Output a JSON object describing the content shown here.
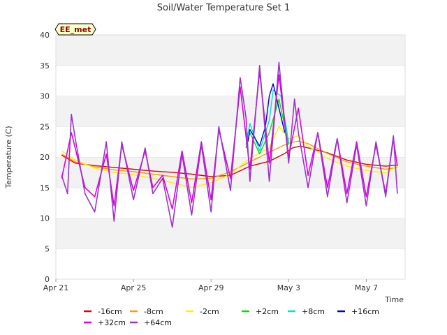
{
  "chart_data": {
    "type": "line",
    "title": "Soil/Water Temperature Set 1",
    "badge": "EE_met",
    "xlabel": "Time",
    "ylabel": "Temperature (C)",
    "ylim": [
      0,
      40
    ],
    "yticks": [
      0,
      5,
      10,
      15,
      20,
      25,
      30,
      35,
      40
    ],
    "xlim": [
      "2019-04-21",
      "2019-05-09"
    ],
    "xtick_labels": [
      "Apr 21",
      "Apr 25",
      "Apr 29",
      "May 3",
      "May 7"
    ],
    "xtick_days": [
      0,
      4,
      8,
      12,
      16
    ],
    "grid": "horizontal bands",
    "legend_position": "bottom",
    "series": [
      {
        "name": "-16cm",
        "color": "#dd0000",
        "points": [
          [
            0.3,
            20.3
          ],
          [
            1,
            19.0
          ],
          [
            2,
            18.6
          ],
          [
            3,
            18.3
          ],
          [
            4,
            18.0
          ],
          [
            5,
            17.7
          ],
          [
            6,
            17.5
          ],
          [
            7,
            17.2
          ],
          [
            8,
            16.8
          ],
          [
            9,
            17.0
          ],
          [
            10,
            18.5
          ],
          [
            11,
            19.3
          ],
          [
            11.8,
            20.6
          ],
          [
            12.2,
            21.5
          ],
          [
            12.6,
            21.8
          ],
          [
            13,
            21.5
          ],
          [
            14,
            20.7
          ],
          [
            15,
            19.5
          ],
          [
            16,
            18.8
          ],
          [
            17,
            18.5
          ],
          [
            17.6,
            18.7
          ]
        ]
      },
      {
        "name": "-8cm",
        "color": "#ff9900",
        "points": [
          [
            0.3,
            20.5
          ],
          [
            1,
            19.2
          ],
          [
            2,
            18.4
          ],
          [
            3,
            17.9
          ],
          [
            4,
            17.6
          ],
          [
            5,
            17.2
          ],
          [
            6,
            16.8
          ],
          [
            7,
            16.4
          ],
          [
            8,
            16.5
          ],
          [
            9,
            17.6
          ],
          [
            10,
            19.2
          ],
          [
            11,
            20.8
          ],
          [
            12,
            22.3
          ],
          [
            12.5,
            22.6
          ],
          [
            13,
            22.2
          ],
          [
            14,
            20.6
          ],
          [
            15,
            19.2
          ],
          [
            16,
            18.5
          ],
          [
            17,
            18.0
          ],
          [
            17.6,
            18.3
          ]
        ]
      },
      {
        "name": "-2cm",
        "color": "#ffee00",
        "points": [
          [
            0.3,
            21.0
          ],
          [
            1,
            19.5
          ],
          [
            2,
            18.2
          ],
          [
            3,
            17.5
          ],
          [
            4,
            17.1
          ],
          [
            5,
            16.5
          ],
          [
            6,
            15.8
          ],
          [
            7,
            15.0
          ],
          [
            8,
            15.8
          ],
          [
            9,
            17.2
          ],
          [
            10,
            19.8
          ],
          [
            11,
            21.5
          ],
          [
            11.5,
            25.0
          ],
          [
            12,
            23.0
          ],
          [
            12.5,
            23.5
          ],
          [
            13,
            21.8
          ],
          [
            14,
            19.8
          ],
          [
            15,
            18.5
          ],
          [
            16,
            17.8
          ],
          [
            17,
            17.4
          ],
          [
            17.6,
            18.5
          ]
        ]
      },
      {
        "name": "+2cm",
        "color": "#00dd00",
        "points": [
          [
            9.8,
            21.5
          ],
          [
            10,
            24.0
          ],
          [
            10.5,
            20.5
          ],
          [
            11,
            24.0
          ],
          [
            11.5,
            29.5
          ],
          [
            12,
            22.0
          ]
        ]
      },
      {
        "name": "+8cm",
        "color": "#00dddd",
        "points": [
          [
            9.8,
            22.0
          ],
          [
            10,
            25.5
          ],
          [
            10.5,
            21.0
          ],
          [
            11,
            26.0
          ],
          [
            11.2,
            31.0
          ],
          [
            11.6,
            30.0
          ],
          [
            12,
            22.5
          ]
        ]
      },
      {
        "name": "+16cm",
        "color": "#0000cc",
        "points": [
          [
            9.9,
            22.5
          ],
          [
            10,
            24.5
          ],
          [
            10.5,
            21.8
          ],
          [
            10.8,
            25.0
          ],
          [
            11,
            30.0
          ],
          [
            11.2,
            32.0
          ],
          [
            11.5,
            28.0
          ],
          [
            11.8,
            24.0
          ]
        ]
      },
      {
        "name": "+32cm",
        "color": "#dd00dd",
        "points": [
          [
            0.3,
            16.5
          ],
          [
            0.8,
            24.0
          ],
          [
            1.5,
            15.0
          ],
          [
            2,
            13.5
          ],
          [
            2.6,
            20.5
          ],
          [
            3,
            12.0
          ],
          [
            3.4,
            22.0
          ],
          [
            4,
            14.5
          ],
          [
            4.6,
            21.0
          ],
          [
            5,
            15.0
          ],
          [
            5.5,
            17.0
          ],
          [
            6,
            11.5
          ],
          [
            6.5,
            21.0
          ],
          [
            7,
            12.5
          ],
          [
            7.5,
            22.5
          ],
          [
            8,
            13.0
          ],
          [
            8.4,
            24.5
          ],
          [
            9,
            16.5
          ],
          [
            9.5,
            31.5
          ],
          [
            10,
            18.0
          ],
          [
            10.5,
            34.0
          ],
          [
            11,
            19.0
          ],
          [
            11.5,
            33.5
          ],
          [
            12,
            20.0
          ],
          [
            12.5,
            28.0
          ],
          [
            13,
            17.0
          ],
          [
            13.5,
            24.0
          ],
          [
            14,
            15.0
          ],
          [
            14.5,
            23.0
          ],
          [
            15,
            14.0
          ],
          [
            15.5,
            22.5
          ],
          [
            16,
            13.5
          ],
          [
            16.5,
            22.0
          ],
          [
            17,
            14.0
          ],
          [
            17.4,
            23.0
          ],
          [
            17.6,
            18.5
          ]
        ]
      },
      {
        "name": "+64cm",
        "color": "#9933cc",
        "points": [
          [
            0.3,
            17.0
          ],
          [
            0.6,
            14.0
          ],
          [
            0.8,
            27.0
          ],
          [
            1.0,
            23.0
          ],
          [
            1.5,
            14.0
          ],
          [
            2,
            11.0
          ],
          [
            2.6,
            22.5
          ],
          [
            3,
            9.5
          ],
          [
            3.4,
            22.5
          ],
          [
            4,
            13.0
          ],
          [
            4.6,
            21.5
          ],
          [
            5,
            14.0
          ],
          [
            5.5,
            16.5
          ],
          [
            6,
            8.5
          ],
          [
            6.5,
            20.5
          ],
          [
            7,
            10.5
          ],
          [
            7.5,
            22.0
          ],
          [
            8,
            11.0
          ],
          [
            8.4,
            25.0
          ],
          [
            9,
            14.5
          ],
          [
            9.5,
            33.0
          ],
          [
            9.8,
            26.5
          ],
          [
            10,
            16.0
          ],
          [
            10.5,
            35.0
          ],
          [
            11,
            16.0
          ],
          [
            11.5,
            35.5
          ],
          [
            12,
            19.0
          ],
          [
            12.3,
            29.5
          ],
          [
            12.5,
            24.0
          ],
          [
            13,
            15.0
          ],
          [
            13.5,
            24.0
          ],
          [
            14,
            13.5
          ],
          [
            14.5,
            23.0
          ],
          [
            15,
            12.5
          ],
          [
            15.5,
            22.0
          ],
          [
            16,
            12.0
          ],
          [
            16.5,
            22.5
          ],
          [
            17,
            13.5
          ],
          [
            17.4,
            23.5
          ],
          [
            17.6,
            14.0
          ]
        ]
      }
    ]
  }
}
